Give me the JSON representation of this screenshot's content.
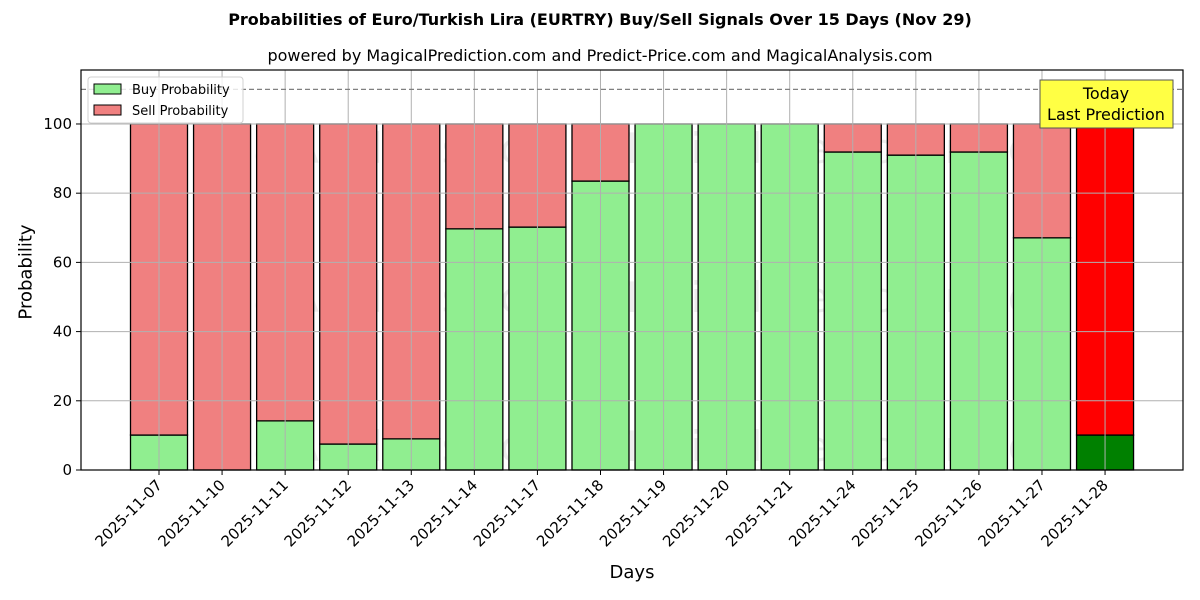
{
  "chart_data": {
    "type": "bar",
    "stacked": true,
    "title": "Probabilities of Euro/Turkish Lira (EURTRY) Buy/Sell Signals Over 15 Days (Nov 29)",
    "subtitle": "powered by MagicalPrediction.com and Predict-Price.com and MagicalAnalysis.com",
    "xlabel": "Days",
    "ylabel": "Probability",
    "ylim": [
      0,
      115.6
    ],
    "yticks": [
      0,
      20,
      40,
      60,
      80,
      100
    ],
    "grid": true,
    "legend_position": "upper left",
    "reference_line": {
      "y": 110,
      "style": "dashed",
      "color": "#808080"
    },
    "categories": [
      "2025-11-07",
      "2025-11-10",
      "2025-11-11",
      "2025-11-12",
      "2025-11-13",
      "2025-11-14",
      "2025-11-17",
      "2025-11-18",
      "2025-11-19",
      "2025-11-20",
      "2025-11-21",
      "2025-11-24",
      "2025-11-25",
      "2025-11-26",
      "2025-11-27",
      "2025-11-28"
    ],
    "series": [
      {
        "name": "Buy Probability",
        "color": "#90EE90",
        "values": [
          10.1,
          0,
          14.2,
          7.5,
          9.0,
          69.7,
          70.2,
          83.5,
          100,
          100,
          100,
          91.9,
          91.0,
          91.9,
          67.1,
          10.1
        ]
      },
      {
        "name": "Sell Probability",
        "color": "#F08080",
        "values": [
          89.9,
          100,
          85.8,
          92.5,
          91.0,
          30.3,
          29.8,
          16.5,
          0,
          0,
          0,
          8.1,
          9.0,
          8.1,
          32.9,
          89.9
        ]
      }
    ],
    "highlight": {
      "index": 15,
      "buy_color": "#008000",
      "sell_color": "#FF0000"
    },
    "annotation": {
      "text_line1": "Today",
      "text_line2": "Last Prediction",
      "background": "#FFFF44"
    },
    "watermarks": [
      "MagicalAnalysis.com",
      "MagicalPrediction.com"
    ]
  }
}
